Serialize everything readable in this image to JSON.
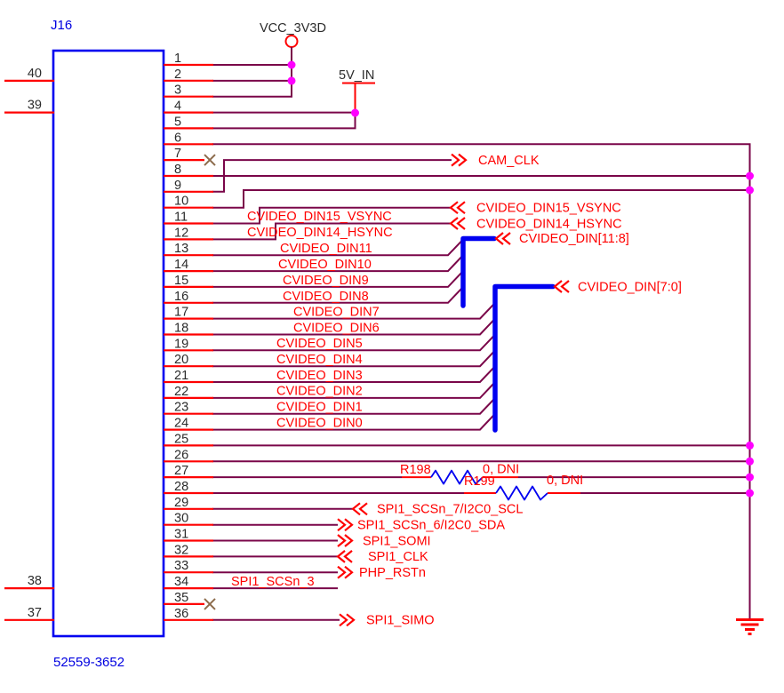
{
  "connector": {
    "designator": "J16",
    "part_number": "52559-3652",
    "right_pin_numbers": [
      "1",
      "2",
      "3",
      "4",
      "5",
      "6",
      "7",
      "8",
      "9",
      "10",
      "11",
      "12",
      "13",
      "14",
      "15",
      "16",
      "17",
      "18",
      "19",
      "20",
      "21",
      "22",
      "23",
      "24",
      "25",
      "26",
      "27",
      "28",
      "29",
      "30",
      "31",
      "32",
      "33",
      "34",
      "35",
      "36"
    ],
    "left_pin_numbers": [
      "40",
      "39",
      "38",
      "37"
    ]
  },
  "power_symbols": {
    "vcc": "VCC_3V3D",
    "v5": "5V_IN"
  },
  "ports": [
    {
      "name": "CAM_CLK",
      "direction": "output"
    },
    {
      "name": "CVIDEO_DIN15_VSYNC",
      "direction": "input"
    },
    {
      "name": "CVIDEO_DIN14_HSYNC",
      "direction": "input"
    },
    {
      "name": "CVIDEO_DIN[11:8]",
      "direction": "input-bus"
    },
    {
      "name": "CVIDEO_DIN[7:0]",
      "direction": "input-bus"
    },
    {
      "name": "SPI1_SCSn_7/I2C0_SCL",
      "direction": "input"
    },
    {
      "name": "SPI1_SCSn_6/I2C0_SDA",
      "direction": "output"
    },
    {
      "name": "SPI1_SOMI",
      "direction": "output"
    },
    {
      "name": "SPI1_CLK",
      "direction": "input"
    },
    {
      "name": "PHP_RSTn",
      "direction": "output"
    },
    {
      "name": "SPI1_SIMO",
      "direction": "output"
    }
  ],
  "net_labels": [
    "CVIDEO_DIN15_VSYNC",
    "CVIDEO_DIN14_HSYNC",
    "CVIDEO_DIN11",
    "CVIDEO_DIN10",
    "CVIDEO_DIN9",
    "CVIDEO_DIN8",
    "CVIDEO_DIN7",
    "CVIDEO_DIN6",
    "CVIDEO_DIN5",
    "CVIDEO_DIN4",
    "CVIDEO_DIN3",
    "CVIDEO_DIN2",
    "CVIDEO_DIN1",
    "CVIDEO_DIN0",
    "SPI1_SCSn_3"
  ],
  "resistors": [
    {
      "ref_des": "R198",
      "value": "0, DNI"
    },
    {
      "ref_des": "R199",
      "value": "0, DNI"
    }
  ],
  "colors": {
    "wire": "#7A0649",
    "pin_stub": "#FF0000",
    "bus": "#0000F0",
    "connector_outline": "#0000F0",
    "junction": "#FF00FF",
    "label_red": "#FF0000",
    "text_dark": "#2B2B2B",
    "blue_text": "#0000E0",
    "no_connect": "#8C6B4C",
    "ground": "#FF0000"
  }
}
